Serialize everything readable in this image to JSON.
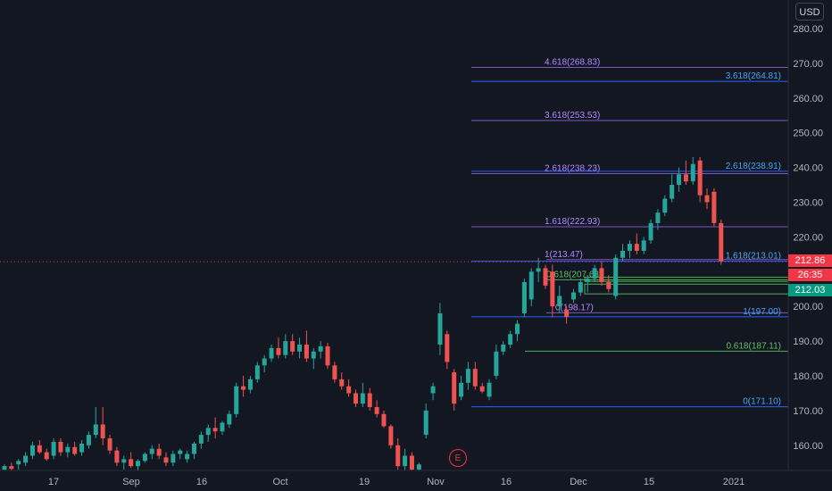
{
  "currency": "USD",
  "price_axis": {
    "ticks": [
      "280.00",
      "270.00",
      "260.00",
      "250.00",
      "240.00",
      "230.00",
      "220.00",
      "210.00",
      "200.00",
      "190.00",
      "180.00",
      "170.00",
      "160.00"
    ]
  },
  "time_axis": {
    "ticks": [
      "17",
      "Sep",
      "16",
      "Oct",
      "19",
      "Nov",
      "16",
      "Dec",
      "15",
      "2021"
    ]
  },
  "price_tags": {
    "last_price": "212.86",
    "countdown": "26:35",
    "level_price": "212.03"
  },
  "earnings_marker": "E",
  "colors": {
    "background": "#131722",
    "up_candle": "#26a69a",
    "down_candle": "#ef5350",
    "fib_purple": "#7e57c2",
    "fib_blue": "#2962ff",
    "fib_green": "#4caf50",
    "fib_purple_text": "#b388ff",
    "fib_blue_text": "#42a5f5",
    "fib_green_text": "#66bb6a",
    "axis_text": "#b2b5be",
    "last_price_line": "#f23645",
    "zone_green": "#4caf50"
  },
  "chart_data": {
    "type": "candlestick",
    "x_axis": "date (daily)",
    "y_axis": "price (USD)",
    "ylim": [
      153,
      284
    ],
    "grid": false,
    "last_price": 212.86,
    "candles": [
      {
        "o": 153.0,
        "h": 154.5,
        "l": 151.5,
        "c": 154.0
      },
      {
        "o": 154.0,
        "h": 155.0,
        "l": 152.0,
        "c": 153.2
      },
      {
        "o": 154.5,
        "h": 156.0,
        "l": 153.0,
        "c": 155.5
      },
      {
        "o": 155.0,
        "h": 158.0,
        "l": 154.0,
        "c": 157.0
      },
      {
        "o": 157.0,
        "h": 161.0,
        "l": 156.0,
        "c": 160.0
      },
      {
        "o": 160.0,
        "h": 161.5,
        "l": 157.5,
        "c": 158.0
      },
      {
        "o": 158.0,
        "h": 159.0,
        "l": 155.5,
        "c": 156.0
      },
      {
        "o": 157.0,
        "h": 162.0,
        "l": 156.0,
        "c": 161.0
      },
      {
        "o": 161.0,
        "h": 162.0,
        "l": 157.0,
        "c": 158.0
      },
      {
        "o": 158.0,
        "h": 160.5,
        "l": 156.5,
        "c": 159.5
      },
      {
        "o": 159.5,
        "h": 161.0,
        "l": 157.0,
        "c": 157.5
      },
      {
        "o": 158.0,
        "h": 161.5,
        "l": 157.0,
        "c": 160.5
      },
      {
        "o": 160.0,
        "h": 164.0,
        "l": 159.0,
        "c": 163.0
      },
      {
        "o": 163.0,
        "h": 171.0,
        "l": 162.0,
        "c": 166.0
      },
      {
        "o": 166.0,
        "h": 171.0,
        "l": 160.0,
        "c": 162.0
      },
      {
        "o": 162.0,
        "h": 163.0,
        "l": 157.5,
        "c": 158.5
      },
      {
        "o": 158.5,
        "h": 159.5,
        "l": 154.0,
        "c": 155.0
      },
      {
        "o": 155.0,
        "h": 157.0,
        "l": 153.0,
        "c": 156.0
      },
      {
        "o": 156.0,
        "h": 158.0,
        "l": 153.5,
        "c": 154.0
      },
      {
        "o": 154.0,
        "h": 156.0,
        "l": 152.0,
        "c": 155.5
      },
      {
        "o": 155.5,
        "h": 158.0,
        "l": 155.0,
        "c": 157.5
      },
      {
        "o": 157.5,
        "h": 160.0,
        "l": 156.0,
        "c": 159.0
      },
      {
        "o": 159.0,
        "h": 160.5,
        "l": 156.0,
        "c": 157.0
      },
      {
        "o": 156.5,
        "h": 158.0,
        "l": 154.0,
        "c": 155.0
      },
      {
        "o": 155.0,
        "h": 158.5,
        "l": 154.0,
        "c": 157.5
      },
      {
        "o": 157.5,
        "h": 159.0,
        "l": 156.0,
        "c": 158.5
      },
      {
        "o": 156.0,
        "h": 158.5,
        "l": 155.0,
        "c": 157.5
      },
      {
        "o": 157.5,
        "h": 161.0,
        "l": 156.0,
        "c": 160.5
      },
      {
        "o": 160.5,
        "h": 164.0,
        "l": 159.0,
        "c": 163.0
      },
      {
        "o": 163.0,
        "h": 166.0,
        "l": 161.0,
        "c": 165.0
      },
      {
        "o": 165.0,
        "h": 168.0,
        "l": 162.0,
        "c": 164.0
      },
      {
        "o": 164.0,
        "h": 167.0,
        "l": 163.0,
        "c": 166.5
      },
      {
        "o": 166.0,
        "h": 170.0,
        "l": 165.0,
        "c": 169.0
      },
      {
        "o": 169.0,
        "h": 178.0,
        "l": 168.0,
        "c": 177.0
      },
      {
        "o": 177.0,
        "h": 180.0,
        "l": 174.0,
        "c": 176.0
      },
      {
        "o": 176.0,
        "h": 180.0,
        "l": 175.0,
        "c": 179.0
      },
      {
        "o": 179.0,
        "h": 184.0,
        "l": 178.0,
        "c": 183.0
      },
      {
        "o": 183.0,
        "h": 186.0,
        "l": 181.0,
        "c": 185.0
      },
      {
        "o": 185.0,
        "h": 189.0,
        "l": 184.0,
        "c": 188.0
      },
      {
        "o": 188.0,
        "h": 191.0,
        "l": 185.0,
        "c": 186.0
      },
      {
        "o": 186.0,
        "h": 192.0,
        "l": 185.0,
        "c": 190.0
      },
      {
        "o": 190.0,
        "h": 192.0,
        "l": 186.0,
        "c": 187.0
      },
      {
        "o": 187.0,
        "h": 191.0,
        "l": 185.0,
        "c": 189.0
      },
      {
        "o": 189.0,
        "h": 193.0,
        "l": 184.0,
        "c": 185.0
      },
      {
        "o": 185.0,
        "h": 188.0,
        "l": 182.0,
        "c": 187.0
      },
      {
        "o": 187.0,
        "h": 190.0,
        "l": 185.0,
        "c": 188.5
      },
      {
        "o": 188.5,
        "h": 189.5,
        "l": 182.0,
        "c": 183.0
      },
      {
        "o": 183.0,
        "h": 184.0,
        "l": 178.0,
        "c": 179.0
      },
      {
        "o": 179.0,
        "h": 181.0,
        "l": 176.0,
        "c": 177.0
      },
      {
        "o": 177.0,
        "h": 179.0,
        "l": 174.0,
        "c": 175.0
      },
      {
        "o": 175.0,
        "h": 176.0,
        "l": 171.0,
        "c": 172.0
      },
      {
        "o": 172.0,
        "h": 178.0,
        "l": 171.0,
        "c": 175.0
      },
      {
        "o": 175.0,
        "h": 176.5,
        "l": 170.0,
        "c": 171.0
      },
      {
        "o": 171.0,
        "h": 173.0,
        "l": 168.0,
        "c": 169.0
      },
      {
        "o": 169.0,
        "h": 170.0,
        "l": 165.0,
        "c": 165.5
      },
      {
        "o": 165.5,
        "h": 166.0,
        "l": 159.0,
        "c": 160.0
      },
      {
        "o": 160.0,
        "h": 162.0,
        "l": 153.0,
        "c": 154.0
      },
      {
        "o": 154.0,
        "h": 159.0,
        "l": 152.0,
        "c": 157.0
      },
      {
        "o": 157.0,
        "h": 158.0,
        "l": 152.0,
        "c": 153.0
      },
      {
        "o": 153.0,
        "h": 155.0,
        "l": 152.0,
        "c": 154.5
      },
      {
        "o": 163.0,
        "h": 172.0,
        "l": 162.0,
        "c": 170.0
      },
      {
        "o": 175.0,
        "h": 178.0,
        "l": 173.0,
        "c": 177.0
      },
      {
        "o": 189.0,
        "h": 201.0,
        "l": 186.0,
        "c": 198.0
      },
      {
        "o": 192.0,
        "h": 193.0,
        "l": 182.0,
        "c": 184.0
      },
      {
        "o": 181.0,
        "h": 182.0,
        "l": 170.0,
        "c": 172.0
      },
      {
        "o": 174.0,
        "h": 180.0,
        "l": 173.0,
        "c": 178.0
      },
      {
        "o": 178.0,
        "h": 184.0,
        "l": 176.0,
        "c": 182.0
      },
      {
        "o": 182.0,
        "h": 184.0,
        "l": 176.0,
        "c": 177.0
      },
      {
        "o": 177.0,
        "h": 178.0,
        "l": 175.0,
        "c": 175.5
      },
      {
        "o": 174.0,
        "h": 179.0,
        "l": 173.0,
        "c": 178.0
      },
      {
        "o": 180.0,
        "h": 189.0,
        "l": 179.0,
        "c": 187.0
      },
      {
        "o": 187.0,
        "h": 190.0,
        "l": 186.0,
        "c": 189.0
      },
      {
        "o": 189.0,
        "h": 193.0,
        "l": 188.0,
        "c": 192.0
      },
      {
        "o": 192.0,
        "h": 196.0,
        "l": 190.0,
        "c": 195.0
      },
      {
        "o": 198.0,
        "h": 208.0,
        "l": 197.0,
        "c": 207.0
      },
      {
        "o": 202.0,
        "h": 211.0,
        "l": 200.0,
        "c": 210.0
      },
      {
        "o": 210.0,
        "h": 214.0,
        "l": 207.0,
        "c": 211.0
      },
      {
        "o": 211.0,
        "h": 212.0,
        "l": 205.0,
        "c": 206.0
      },
      {
        "o": 210.0,
        "h": 212.0,
        "l": 197.0,
        "c": 200.0
      },
      {
        "o": 200.0,
        "h": 206.0,
        "l": 198.0,
        "c": 203.0
      },
      {
        "o": 199.0,
        "h": 200.0,
        "l": 195.0,
        "c": 197.0
      },
      {
        "o": 202.0,
        "h": 205.0,
        "l": 201.0,
        "c": 204.0
      },
      {
        "o": 204.0,
        "h": 208.0,
        "l": 203.0,
        "c": 207.0
      },
      {
        "o": 207.0,
        "h": 209.0,
        "l": 204.0,
        "c": 208.0
      },
      {
        "o": 208.0,
        "h": 212.0,
        "l": 207.0,
        "c": 211.0
      },
      {
        "o": 211.0,
        "h": 213.0,
        "l": 206.0,
        "c": 207.0
      },
      {
        "o": 207.0,
        "h": 209.0,
        "l": 204.0,
        "c": 205.0
      },
      {
        "o": 203.0,
        "h": 215.0,
        "l": 202.0,
        "c": 214.0
      },
      {
        "o": 214.0,
        "h": 218.0,
        "l": 213.0,
        "c": 216.0
      },
      {
        "o": 216.0,
        "h": 219.0,
        "l": 214.0,
        "c": 218.0
      },
      {
        "o": 218.0,
        "h": 221.0,
        "l": 215.0,
        "c": 216.0
      },
      {
        "o": 216.0,
        "h": 220.0,
        "l": 215.0,
        "c": 219.0
      },
      {
        "o": 219.0,
        "h": 225.0,
        "l": 218.0,
        "c": 224.0
      },
      {
        "o": 224.0,
        "h": 228.0,
        "l": 222.0,
        "c": 227.0
      },
      {
        "o": 227.0,
        "h": 232.0,
        "l": 226.0,
        "c": 231.0
      },
      {
        "o": 231.0,
        "h": 238.0,
        "l": 230.0,
        "c": 235.0
      },
      {
        "o": 235.0,
        "h": 240.0,
        "l": 233.0,
        "c": 238.0
      },
      {
        "o": 238.0,
        "h": 242.0,
        "l": 235.0,
        "c": 236.0
      },
      {
        "o": 236.0,
        "h": 243.0,
        "l": 235.0,
        "c": 241.0
      },
      {
        "o": 242.0,
        "h": 243.0,
        "l": 230.0,
        "c": 232.0
      },
      {
        "o": 232.0,
        "h": 234.0,
        "l": 228.0,
        "c": 230.0
      },
      {
        "o": 233.0,
        "h": 234.0,
        "l": 223.0,
        "c": 224.0
      },
      {
        "o": 224.0,
        "h": 225.0,
        "l": 212.0,
        "c": 213.0
      }
    ],
    "fib_levels": [
      {
        "label": "4.618(268.83)",
        "value": 268.83,
        "group": "purple"
      },
      {
        "label": "3.618(264.81)",
        "value": 264.81,
        "group": "blue"
      },
      {
        "label": "3.618(253.53)",
        "value": 253.53,
        "group": "purple"
      },
      {
        "label": "2.618(238.23)",
        "value": 238.23,
        "group": "purple"
      },
      {
        "label": "2.618(238.91)",
        "value": 238.91,
        "group": "blue"
      },
      {
        "label": "1.618(222.93)",
        "value": 222.93,
        "group": "purple"
      },
      {
        "label": "1(213.47)",
        "value": 213.47,
        "group": "purple"
      },
      {
        "label": "1.618(213.01)",
        "value": 213.01,
        "group": "blue"
      },
      {
        "label": "0.618(207.68)",
        "value": 207.68,
        "group": "green"
      },
      {
        "label": "0(198.17)",
        "value": 198.17,
        "group": "purple"
      },
      {
        "label": "1(197.00)",
        "value": 197.0,
        "group": "blue"
      },
      {
        "label": "0.618(187.11)",
        "value": 187.11,
        "group": "green"
      },
      {
        "label": "0(171.10)",
        "value": 171.1,
        "group": "blue"
      }
    ],
    "zones": [
      {
        "low": 207.2,
        "high": 208.4
      },
      {
        "low": 203.6,
        "high": 206.4
      }
    ]
  }
}
